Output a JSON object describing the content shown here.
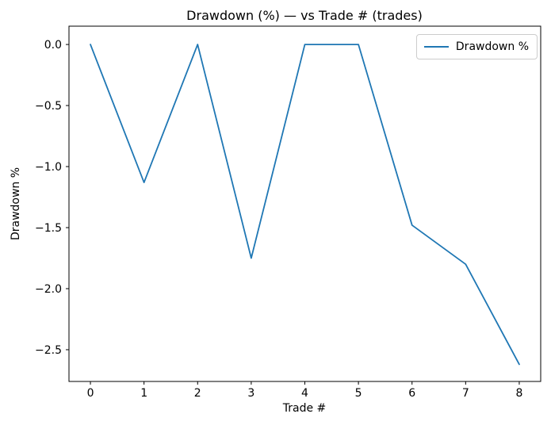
{
  "figure": {
    "background": "#ffffff",
    "spine_color": "#000000"
  },
  "chart_data": {
    "type": "line",
    "title": "Drawdown (%) — vs Trade # (trades)",
    "xlabel": "Trade #",
    "ylabel": "Drawdown %",
    "x": [
      0,
      1,
      2,
      3,
      4,
      5,
      6,
      7,
      8
    ],
    "series": [
      {
        "name": "Drawdown %",
        "values": [
          0.0,
          -1.13,
          0.0,
          -1.75,
          0.0,
          0.0,
          -1.48,
          -1.8,
          -2.62
        ],
        "color": "#1f77b4",
        "line_width": 1.8
      }
    ],
    "xticks": {
      "values": [
        0,
        1,
        2,
        3,
        4,
        5,
        6,
        7,
        8
      ],
      "labels": [
        "0",
        "1",
        "2",
        "3",
        "4",
        "5",
        "6",
        "7",
        "8"
      ]
    },
    "yticks": {
      "values": [
        0,
        -0.5,
        -1.0,
        -1.5,
        -2.0,
        -2.5
      ],
      "labels": [
        "0.0",
        "−0.5",
        "−1.0",
        "−1.5",
        "−2.0",
        "−2.5"
      ]
    },
    "xlim": [
      -0.4,
      8.4
    ],
    "ylim": [
      -2.76,
      0.15
    ],
    "grid": false,
    "legend": {
      "position": "upper right",
      "entries": [
        {
          "label": "Drawdown %",
          "color": "#1f77b4"
        }
      ]
    }
  }
}
